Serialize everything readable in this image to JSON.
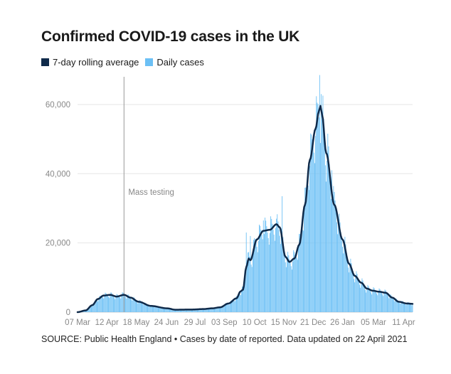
{
  "colors": {
    "avg": "#0f2a4a",
    "daily": "#6cc0f5",
    "grid": "#e6e6e6",
    "tick": "#888888",
    "annotation": "#999999"
  },
  "chart_data": {
    "type": "bar",
    "title": "Confirmed COVID-19 cases in the UK",
    "legend": [
      {
        "name": "7-day rolling average",
        "color": "#0f2a4a"
      },
      {
        "name": "Daily cases",
        "color": "#6cc0f5"
      }
    ],
    "xlabel": "",
    "ylabel": "",
    "ylim": [
      0,
      68000
    ],
    "x_range_days": [
      0,
      411
    ],
    "y_ticks": [
      {
        "value": 0,
        "label": "0"
      },
      {
        "value": 20000,
        "label": "20,000"
      },
      {
        "value": 40000,
        "label": "40,000"
      },
      {
        "value": 60000,
        "label": "60,000"
      }
    ],
    "x_ticks": [
      {
        "day": 0,
        "label": "07 Mar"
      },
      {
        "day": 36,
        "label": "12 Apr"
      },
      {
        "day": 72,
        "label": "18 May"
      },
      {
        "day": 109,
        "label": "24 Jun"
      },
      {
        "day": 144,
        "label": "29 Jul"
      },
      {
        "day": 180,
        "label": "03 Sep"
      },
      {
        "day": 217,
        "label": "10 Oct"
      },
      {
        "day": 253,
        "label": "15 Nov"
      },
      {
        "day": 289,
        "label": "21 Dec"
      },
      {
        "day": 325,
        "label": "26 Jan"
      },
      {
        "day": 363,
        "label": "05 Mar"
      },
      {
        "day": 400,
        "label": "11 Apr"
      }
    ],
    "annotations": [
      {
        "day": 57,
        "label": "Mass testing"
      }
    ],
    "rolling_average_keypoints": [
      [
        0,
        0
      ],
      [
        10,
        500
      ],
      [
        18,
        2000
      ],
      [
        25,
        3800
      ],
      [
        32,
        4800
      ],
      [
        40,
        5000
      ],
      [
        48,
        4500
      ],
      [
        57,
        5000
      ],
      [
        65,
        4200
      ],
      [
        75,
        3000
      ],
      [
        90,
        1800
      ],
      [
        110,
        1100
      ],
      [
        120,
        700
      ],
      [
        140,
        750
      ],
      [
        155,
        900
      ],
      [
        165,
        1100
      ],
      [
        175,
        1400
      ],
      [
        185,
        2500
      ],
      [
        195,
        4000
      ],
      [
        200,
        6000
      ],
      [
        203,
        6500
      ],
      [
        207,
        13000
      ],
      [
        210,
        15500
      ],
      [
        212,
        15000
      ],
      [
        220,
        21000
      ],
      [
        228,
        23500
      ],
      [
        236,
        23800
      ],
      [
        244,
        25400
      ],
      [
        248,
        24500
      ],
      [
        255,
        16000
      ],
      [
        260,
        14500
      ],
      [
        266,
        15500
      ],
      [
        272,
        19500
      ],
      [
        279,
        31000
      ],
      [
        285,
        44000
      ],
      [
        292,
        53000
      ],
      [
        296,
        58000
      ],
      [
        298,
        59600
      ],
      [
        300,
        57000
      ],
      [
        305,
        46000
      ],
      [
        315,
        31000
      ],
      [
        325,
        21000
      ],
      [
        333,
        14000
      ],
      [
        340,
        10500
      ],
      [
        348,
        8500
      ],
      [
        355,
        6800
      ],
      [
        362,
        6200
      ],
      [
        370,
        5900
      ],
      [
        378,
        5600
      ],
      [
        386,
        4200
      ],
      [
        394,
        3000
      ],
      [
        404,
        2500
      ],
      [
        411,
        2400
      ]
    ],
    "daily_overrides": [
      {
        "day": 207,
        "value": 23000
      },
      {
        "day": 212,
        "value": 22000
      },
      {
        "day": 228,
        "value": 26500
      },
      {
        "day": 244,
        "value": 27000
      },
      {
        "day": 251,
        "value": 33500
      },
      {
        "day": 280,
        "value": 36000
      },
      {
        "day": 294,
        "value": 60500
      },
      {
        "day": 297,
        "value": 68500
      },
      {
        "day": 299,
        "value": 63000
      },
      {
        "day": 300,
        "value": 56000
      },
      {
        "day": 312,
        "value": 41000
      }
    ]
  },
  "source": "SOURCE: Public Health England • Cases by date of reported. Data updated on 22 April 2021"
}
